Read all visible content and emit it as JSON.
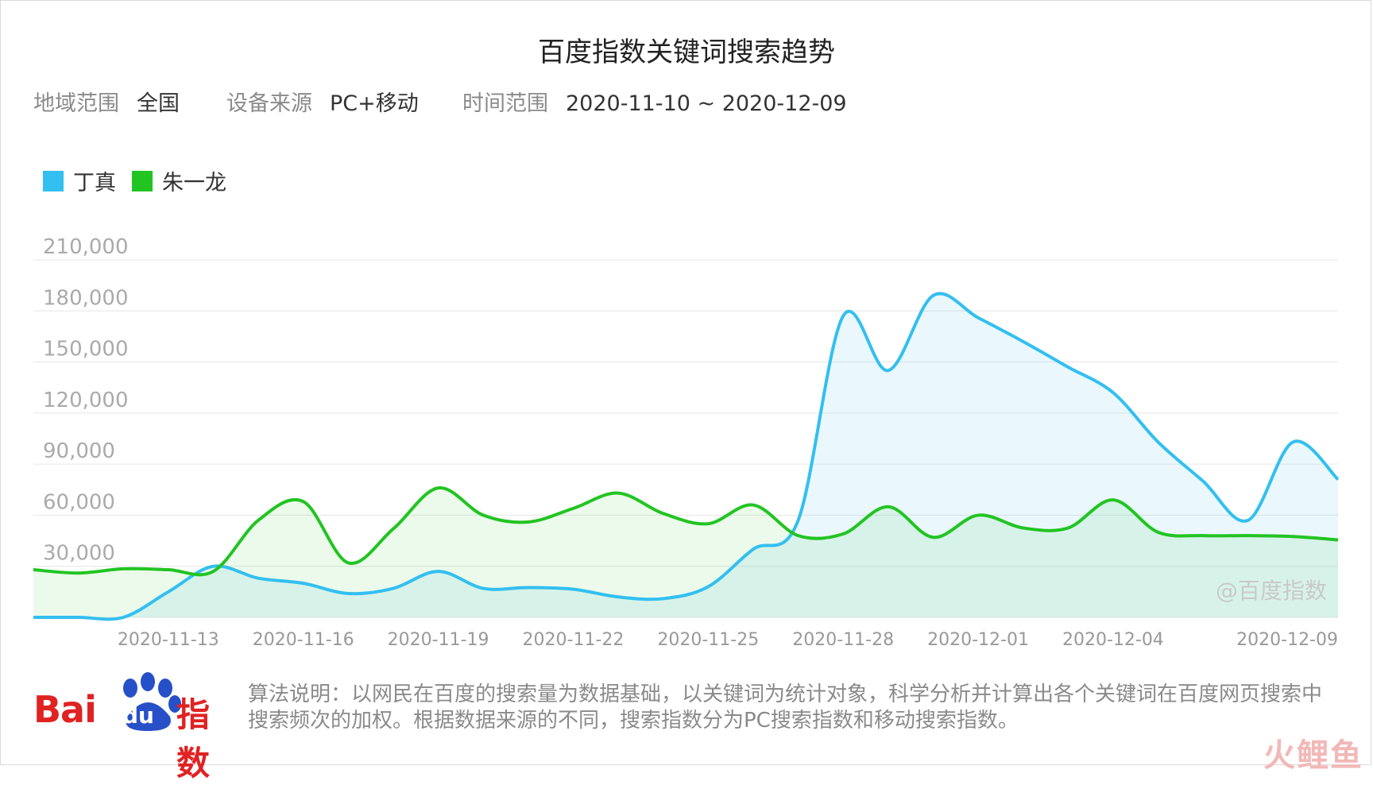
{
  "title": "百度指数关键词搜索趋势",
  "meta": {
    "region_label": "地域范围",
    "region_value": "全国",
    "device_label": "设备来源",
    "device_value": "PC+移动",
    "time_label": "时间范围",
    "time_value": "2020-11-10 ~ 2020-12-09"
  },
  "watermark": "@百度指数",
  "logo": {
    "word": "Bai",
    "du": "du",
    "suffix": "指数"
  },
  "note": "算法说明：以网民在百度的搜索量为数据基础，以关键词为统计对象，科学分析并计算出各个关键词在百度网页搜索中搜索频次的加权。根据数据来源的不同，搜索指数分为PC搜索指数和移动搜索指数。",
  "brand_mark": "火鲤鱼",
  "colors": {
    "dingzhen": "#33bff0",
    "zhuyilong": "#22c422",
    "grid": "#e6e6e6",
    "tick": "#999999"
  },
  "chart_data": {
    "type": "area",
    "x": [
      "2020-11-10",
      "2020-11-11",
      "2020-11-12",
      "2020-11-13",
      "2020-11-14",
      "2020-11-15",
      "2020-11-16",
      "2020-11-17",
      "2020-11-18",
      "2020-11-19",
      "2020-11-20",
      "2020-11-21",
      "2020-11-22",
      "2020-11-23",
      "2020-11-24",
      "2020-11-25",
      "2020-11-26",
      "2020-11-27",
      "2020-11-28",
      "2020-11-29",
      "2020-11-30",
      "2020-12-01",
      "2020-12-02",
      "2020-12-03",
      "2020-12-04",
      "2020-12-05",
      "2020-12-06",
      "2020-12-07",
      "2020-12-08",
      "2020-12-09"
    ],
    "x_tick_labels": [
      "2020-11-13",
      "2020-11-16",
      "2020-11-19",
      "2020-11-22",
      "2020-11-25",
      "2020-11-28",
      "2020-12-01",
      "2020-12-04",
      "2020-12-09"
    ],
    "y_ticks": [
      "30,000",
      "60,000",
      "90,000",
      "120,000",
      "150,000",
      "180,000",
      "210,000"
    ],
    "ylim": [
      0,
      210000
    ],
    "legend_position": "top-left",
    "grid": true,
    "series": [
      {
        "name": "丁真",
        "values": [
          0,
          0,
          0,
          15000,
          30000,
          23000,
          20000,
          14000,
          17000,
          27000,
          17000,
          17500,
          16500,
          12000,
          11000,
          18000,
          40000,
          57000,
          177000,
          145000,
          189000,
          176000,
          162000,
          147000,
          132000,
          103000,
          80000,
          57000,
          103000,
          81000
        ]
      },
      {
        "name": "朱一龙",
        "values": [
          28000,
          26000,
          28500,
          28000,
          27000,
          57000,
          68000,
          32000,
          52000,
          76000,
          60000,
          56000,
          64000,
          73000,
          61000,
          55000,
          66000,
          48000,
          49000,
          65000,
          47000,
          60000,
          52500,
          52500,
          69000,
          50000,
          48000,
          48000,
          47500,
          45500
        ]
      }
    ]
  }
}
